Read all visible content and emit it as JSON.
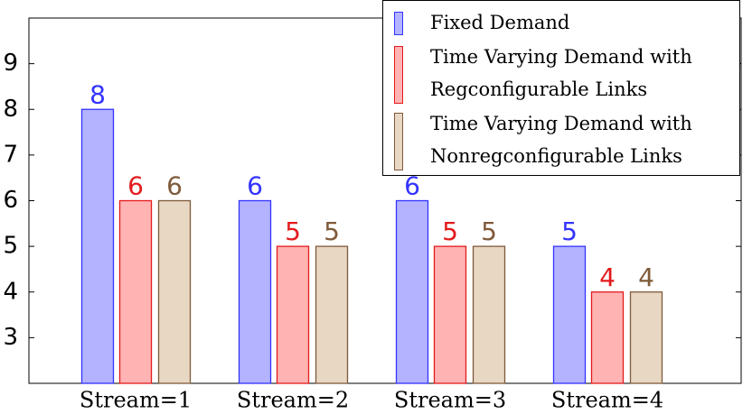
{
  "chart_data": {
    "type": "bar",
    "categories": [
      "Stream=1",
      "Stream=2",
      "Stream=3",
      "Stream=4"
    ],
    "series": [
      {
        "name": "Fixed Demand",
        "color": "#3333ff",
        "fill": "#b3b3ff",
        "values": [
          8,
          6,
          6,
          5
        ]
      },
      {
        "name": "Time Varying Demand with Regconfigurable Links",
        "color": "#e31a1c",
        "fill": "#ffb3b3",
        "values": [
          6,
          5,
          5,
          4
        ]
      },
      {
        "name": "Time Varying Demand with Nonregconfigurable Links",
        "color": "#7f5a3a",
        "fill": "#e8d7c3",
        "values": [
          6,
          5,
          5,
          4
        ]
      }
    ],
    "ylim": [
      2,
      10
    ],
    "yticks": [
      3,
      4,
      5,
      6,
      7,
      8,
      9
    ],
    "legend": "upper right"
  }
}
